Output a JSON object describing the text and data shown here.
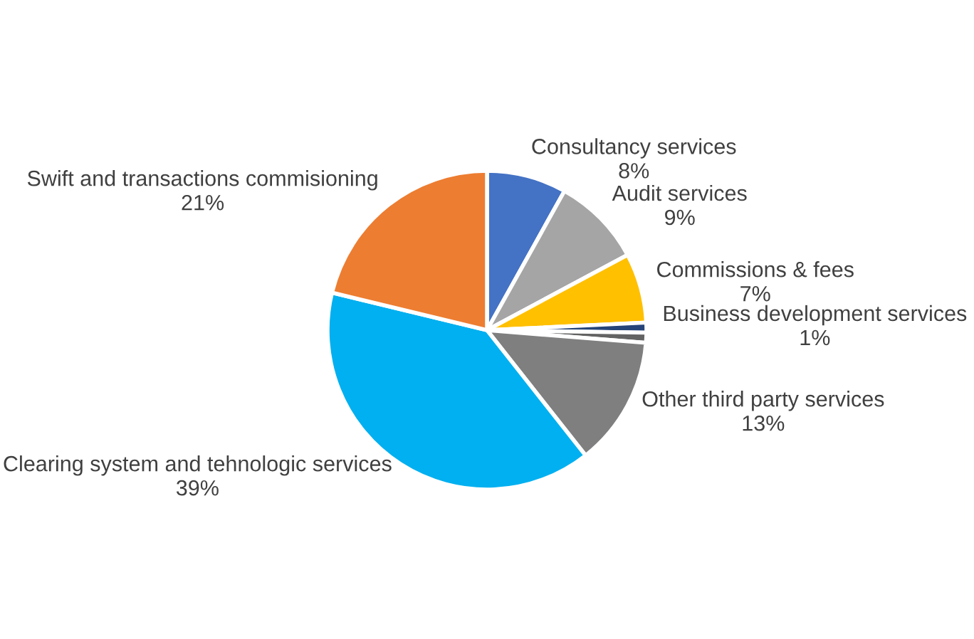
{
  "chart_data": {
    "type": "pie",
    "categories": [
      "Consultancy services",
      "Audit services",
      "Commissions & fees",
      "Business development services",
      null,
      "Other third party services",
      "Clearing system and tehnologic services",
      "Swift and transactions commisioning"
    ],
    "values": [
      8,
      9,
      7,
      1,
      1,
      13,
      39,
      21
    ],
    "value_labels": [
      "8%",
      "9%",
      "7%",
      "1%",
      null,
      "13%",
      "39%",
      "21%"
    ],
    "colors": [
      "#4472c4",
      "#a5a5a5",
      "#ffc000",
      "#264478",
      "#636363",
      "#7f7f7f",
      "#00b0f0",
      "#ed7d31"
    ],
    "legend": false
  }
}
